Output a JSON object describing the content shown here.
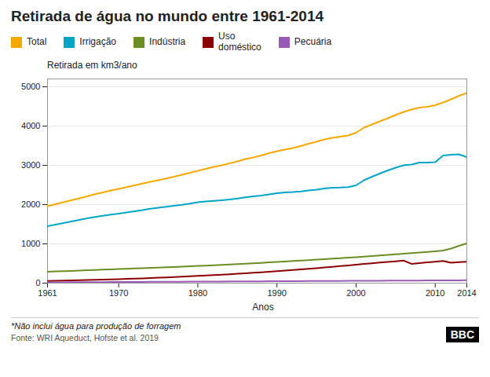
{
  "chart_data": {
    "type": "line",
    "title": "Retirada de água no mundo entre 1961-2014",
    "ylabel": "Retirada em km3/ano",
    "xlabel": "Anos",
    "annotations": [
      "*Não inclui água para produção de forragem",
      "Fonte: WRI Aqueduct, Hofste et al. 2019",
      "BBC"
    ],
    "x": [
      1961,
      1962,
      1963,
      1964,
      1965,
      1966,
      1967,
      1968,
      1969,
      1970,
      1971,
      1972,
      1973,
      1974,
      1975,
      1976,
      1977,
      1978,
      1979,
      1980,
      1981,
      1982,
      1983,
      1984,
      1985,
      1986,
      1987,
      1988,
      1989,
      1990,
      1991,
      1992,
      1993,
      1994,
      1995,
      1996,
      1997,
      1998,
      1999,
      2000,
      2001,
      2002,
      2003,
      2004,
      2005,
      2006,
      2007,
      2008,
      2009,
      2010,
      2011,
      2012,
      2013,
      2014
    ],
    "series": [
      {
        "name": "Total",
        "color": "#F5A800",
        "values": [
          1960,
          2010,
          2060,
          2110,
          2160,
          2210,
          2265,
          2310,
          2360,
          2400,
          2445,
          2490,
          2535,
          2580,
          2620,
          2665,
          2710,
          2760,
          2810,
          2860,
          2910,
          2960,
          3000,
          3050,
          3100,
          3160,
          3200,
          3250,
          3310,
          3360,
          3400,
          3440,
          3490,
          3550,
          3600,
          3660,
          3700,
          3730,
          3760,
          3830,
          3960,
          4040,
          4120,
          4200,
          4280,
          4360,
          4420,
          4470,
          4490,
          4530,
          4600,
          4680,
          4770,
          4840
        ]
      },
      {
        "name": "Irrigação",
        "color": "#00A5C8",
        "values": [
          1450,
          1490,
          1530,
          1570,
          1610,
          1650,
          1685,
          1715,
          1745,
          1770,
          1800,
          1830,
          1860,
          1895,
          1920,
          1945,
          1970,
          1995,
          2025,
          2060,
          2080,
          2095,
          2110,
          2130,
          2155,
          2185,
          2210,
          2230,
          2260,
          2290,
          2310,
          2320,
          2335,
          2360,
          2380,
          2410,
          2430,
          2435,
          2445,
          2490,
          2620,
          2710,
          2790,
          2870,
          2940,
          3000,
          3020,
          3070,
          3070,
          3080,
          3250,
          3270,
          3280,
          3210
        ]
      },
      {
        "name": "Indústria",
        "color": "#6B8E23",
        "values": [
          290,
          298,
          305,
          312,
          320,
          328,
          335,
          343,
          350,
          358,
          365,
          373,
          380,
          388,
          396,
          404,
          412,
          420,
          429,
          438,
          447,
          456,
          465,
          475,
          485,
          496,
          506,
          517,
          528,
          540,
          551,
          563,
          574,
          586,
          598,
          612,
          624,
          636,
          648,
          662,
          675,
          689,
          703,
          718,
          733,
          748,
          764,
          780,
          796,
          812,
          830,
          880,
          950,
          1010
        ]
      },
      {
        "name": "Uso\ndoméstico",
        "color": "#8B0000",
        "values": [
          55,
          60,
          65,
          70,
          75,
          80,
          85,
          90,
          96,
          102,
          108,
          115,
          122,
          130,
          138,
          146,
          155,
          164,
          174,
          184,
          194,
          204,
          215,
          226,
          238,
          250,
          263,
          276,
          290,
          304,
          319,
          334,
          349,
          365,
          382,
          399,
          416,
          434,
          452,
          470,
          488,
          505,
          523,
          540,
          557,
          574,
          492,
          510,
          528,
          546,
          564,
          520,
          535,
          545
        ]
      },
      {
        "name": "Pecuária",
        "color": "#9B59B6",
        "values": [
          20,
          21,
          22,
          23,
          24,
          25,
          26,
          27,
          28,
          29,
          30,
          31,
          32,
          33,
          34,
          35,
          36,
          37,
          38,
          39,
          40,
          41,
          42,
          43,
          44,
          45,
          46,
          47,
          48,
          49,
          50,
          51,
          52,
          53,
          54,
          55,
          56,
          57,
          58,
          59,
          60,
          61,
          62,
          63,
          64,
          65,
          66,
          67,
          68,
          69,
          70,
          71,
          72,
          73
        ]
      }
    ],
    "xlim": [
      1961,
      2014
    ],
    "xticks": [
      1961,
      1970,
      1980,
      1990,
      2000,
      2010,
      2014
    ],
    "ylim": [
      0,
      5200
    ],
    "yticks": [
      0,
      1000,
      2000,
      3000,
      4000,
      5000
    ],
    "grid": true,
    "legend": "top"
  }
}
